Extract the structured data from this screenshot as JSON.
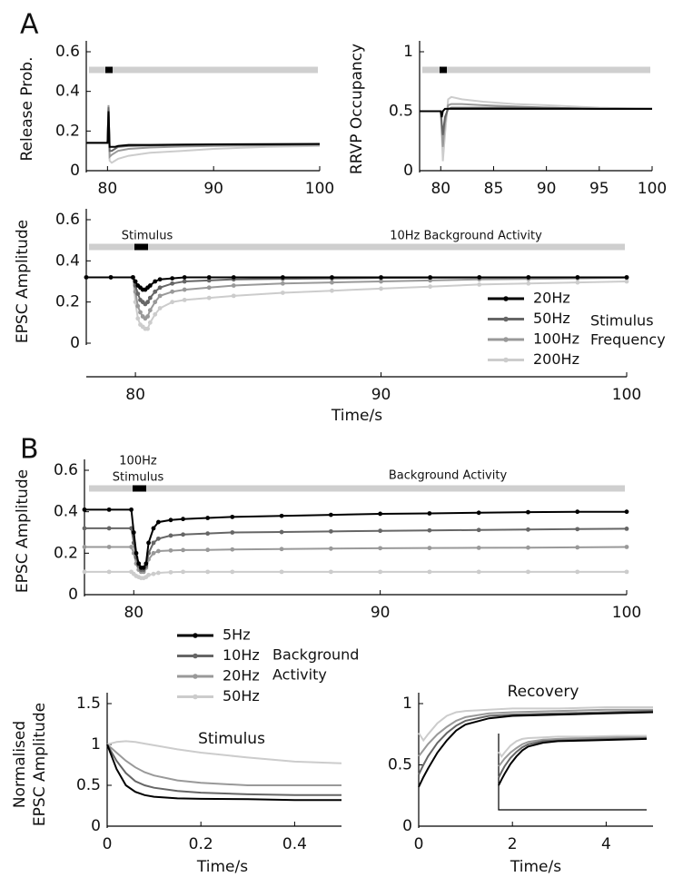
{
  "chart_data": [
    {
      "type": "line",
      "panel_label": "A",
      "ylabel": "Release Prob.",
      "x": [
        78,
        79,
        80,
        80.1,
        80.2,
        80.4,
        80.7,
        81,
        82,
        84,
        87,
        90,
        95,
        100
      ],
      "series": [
        {
          "color": "#000000",
          "values": [
            0.14,
            0.14,
            0.14,
            0.3,
            0.12,
            0.12,
            0.12,
            0.125,
            0.13,
            0.13,
            0.132,
            0.133,
            0.134,
            0.135
          ]
        },
        {
          "color": "#666666",
          "values": [
            0.14,
            0.14,
            0.14,
            0.32,
            0.1,
            0.1,
            0.11,
            0.12,
            0.125,
            0.127,
            0.13,
            0.131,
            0.132,
            0.133
          ]
        },
        {
          "color": "#999999",
          "values": [
            0.14,
            0.14,
            0.14,
            0.33,
            0.07,
            0.08,
            0.09,
            0.1,
            0.11,
            0.117,
            0.122,
            0.125,
            0.128,
            0.13
          ]
        },
        {
          "color": "#cccccc",
          "values": [
            0.14,
            0.14,
            0.14,
            0.33,
            0.05,
            0.04,
            0.05,
            0.06,
            0.075,
            0.09,
            0.1,
            0.11,
            0.12,
            0.125
          ]
        }
      ],
      "xlim": [
        78,
        100
      ],
      "xticks": [
        80,
        90,
        100
      ],
      "ylim": [
        0,
        0.6
      ],
      "yticks": [
        0,
        0.2,
        0.4,
        0.6
      ]
    },
    {
      "type": "line",
      "ylabel": "RRVP Occupancy",
      "x": [
        78,
        79,
        80,
        80.1,
        80.2,
        80.4,
        80.7,
        81,
        82,
        84,
        87,
        90,
        95,
        100
      ],
      "series": [
        {
          "color": "#000000",
          "values": [
            0.5,
            0.5,
            0.5,
            0.45,
            0.5,
            0.52,
            0.52,
            0.52,
            0.52,
            0.52,
            0.52,
            0.52,
            0.52,
            0.52
          ]
        },
        {
          "color": "#666666",
          "values": [
            0.5,
            0.5,
            0.5,
            0.4,
            0.3,
            0.45,
            0.52,
            0.53,
            0.53,
            0.53,
            0.53,
            0.53,
            0.52,
            0.52
          ]
        },
        {
          "color": "#999999",
          "values": [
            0.5,
            0.5,
            0.5,
            0.35,
            0.2,
            0.4,
            0.55,
            0.56,
            0.56,
            0.55,
            0.54,
            0.53,
            0.52,
            0.52
          ]
        },
        {
          "color": "#cccccc",
          "values": [
            0.5,
            0.5,
            0.5,
            0.3,
            0.08,
            0.3,
            0.6,
            0.62,
            0.6,
            0.58,
            0.56,
            0.55,
            0.53,
            0.52
          ]
        }
      ],
      "xlim": [
        78,
        100
      ],
      "xticks": [
        80,
        85,
        90,
        95,
        100
      ],
      "ylim": [
        0,
        1
      ],
      "yticks": [
        0,
        0.5,
        1
      ]
    },
    {
      "type": "line",
      "markers": true,
      "ylabel": "EPSC Amplitude",
      "xlabel": "Time/s",
      "annotations": [
        {
          "text": "Stimulus"
        },
        {
          "text": "10Hz Background Activity"
        }
      ],
      "legend_title": [
        "Stimulus",
        "Frequency"
      ],
      "x": [
        78,
        79,
        79.9,
        80,
        80.1,
        80.2,
        80.3,
        80.4,
        80.5,
        80.6,
        80.8,
        81,
        81.5,
        82,
        83,
        84,
        86,
        88,
        90,
        92,
        94,
        96,
        98,
        100
      ],
      "series": [
        {
          "name": "20Hz",
          "color": "#000000",
          "values": [
            0.32,
            0.32,
            0.32,
            0.3,
            0.28,
            0.27,
            0.26,
            0.26,
            0.27,
            0.28,
            0.3,
            0.31,
            0.315,
            0.32,
            0.32,
            0.32,
            0.32,
            0.32,
            0.32,
            0.32,
            0.32,
            0.32,
            0.32,
            0.32
          ]
        },
        {
          "name": "50Hz",
          "color": "#666666",
          "values": [
            0.32,
            0.32,
            0.32,
            0.28,
            0.24,
            0.21,
            0.2,
            0.19,
            0.2,
            0.22,
            0.25,
            0.27,
            0.29,
            0.3,
            0.305,
            0.31,
            0.313,
            0.315,
            0.317,
            0.318,
            0.319,
            0.32,
            0.32,
            0.32
          ]
        },
        {
          "name": "100Hz",
          "color": "#999999",
          "values": [
            0.32,
            0.32,
            0.32,
            0.25,
            0.18,
            0.15,
            0.13,
            0.12,
            0.13,
            0.16,
            0.2,
            0.23,
            0.25,
            0.26,
            0.27,
            0.28,
            0.29,
            0.295,
            0.3,
            0.305,
            0.31,
            0.312,
            0.315,
            0.318
          ]
        },
        {
          "name": "200Hz",
          "color": "#cccccc",
          "values": [
            0.32,
            0.32,
            0.32,
            0.2,
            0.12,
            0.09,
            0.08,
            0.07,
            0.07,
            0.1,
            0.14,
            0.17,
            0.2,
            0.21,
            0.22,
            0.23,
            0.245,
            0.255,
            0.265,
            0.275,
            0.285,
            0.29,
            0.295,
            0.3
          ]
        }
      ],
      "xlim": [
        78,
        100
      ],
      "xticks": [
        80,
        90,
        100
      ],
      "ylim": [
        0,
        0.6
      ],
      "yticks": [
        0,
        0.2,
        0.4,
        0.6
      ]
    },
    {
      "type": "line",
      "markers": true,
      "panel_label": "B",
      "ylabel": "EPSC Amplitude",
      "annotations": [
        {
          "text": "100Hz"
        },
        {
          "text": "Stimulus"
        },
        {
          "text": "Background Activity"
        }
      ],
      "legend_title": [
        "Background",
        "Activity"
      ],
      "x": [
        78,
        79,
        79.9,
        80,
        80.1,
        80.2,
        80.3,
        80.4,
        80.5,
        80.6,
        80.8,
        81,
        81.5,
        82,
        83,
        84,
        86,
        88,
        90,
        92,
        94,
        96,
        98,
        100
      ],
      "series": [
        {
          "name": "5Hz",
          "color": "#000000",
          "values": [
            0.41,
            0.41,
            0.41,
            0.3,
            0.2,
            0.15,
            0.13,
            0.13,
            0.15,
            0.25,
            0.32,
            0.35,
            0.36,
            0.365,
            0.37,
            0.375,
            0.38,
            0.385,
            0.39,
            0.392,
            0.395,
            0.398,
            0.4,
            0.4
          ]
        },
        {
          "name": "10Hz",
          "color": "#666666",
          "values": [
            0.32,
            0.32,
            0.32,
            0.25,
            0.18,
            0.14,
            0.12,
            0.12,
            0.14,
            0.2,
            0.25,
            0.27,
            0.285,
            0.29,
            0.295,
            0.3,
            0.302,
            0.305,
            0.308,
            0.31,
            0.312,
            0.314,
            0.316,
            0.318
          ]
        },
        {
          "name": "20Hz",
          "color": "#999999",
          "values": [
            0.23,
            0.23,
            0.23,
            0.2,
            0.15,
            0.12,
            0.11,
            0.11,
            0.13,
            0.17,
            0.2,
            0.21,
            0.213,
            0.215,
            0.216,
            0.218,
            0.22,
            0.222,
            0.224,
            0.225,
            0.226,
            0.227,
            0.228,
            0.23
          ]
        },
        {
          "name": "50Hz",
          "color": "#cccccc",
          "values": [
            0.11,
            0.11,
            0.11,
            0.1,
            0.09,
            0.085,
            0.08,
            0.08,
            0.085,
            0.095,
            0.1,
            0.105,
            0.108,
            0.11,
            0.11,
            0.11,
            0.11,
            0.11,
            0.11,
            0.11,
            0.11,
            0.11,
            0.11,
            0.11
          ]
        }
      ],
      "xlim": [
        78,
        100
      ],
      "xticks": [
        80,
        90,
        100
      ],
      "ylim": [
        0,
        0.6
      ],
      "yticks": [
        0,
        0.2,
        0.4,
        0.6
      ]
    },
    {
      "type": "line",
      "title": "Stimulus",
      "ylabel": [
        "Normalised",
        "EPSC Amplitude"
      ],
      "xlabel": "Time/s",
      "x": [
        0,
        0.02,
        0.04,
        0.06,
        0.08,
        0.1,
        0.15,
        0.2,
        0.3,
        0.4,
        0.5
      ],
      "series": [
        {
          "color": "#000000",
          "values": [
            1,
            0.7,
            0.5,
            0.42,
            0.38,
            0.36,
            0.34,
            0.335,
            0.33,
            0.32,
            0.32
          ]
        },
        {
          "color": "#666666",
          "values": [
            1,
            0.8,
            0.65,
            0.55,
            0.5,
            0.47,
            0.43,
            0.41,
            0.39,
            0.38,
            0.38
          ]
        },
        {
          "color": "#999999",
          "values": [
            1,
            0.9,
            0.8,
            0.72,
            0.66,
            0.62,
            0.56,
            0.53,
            0.5,
            0.5,
            0.5
          ]
        },
        {
          "color": "#cccccc",
          "values": [
            1,
            1.03,
            1.04,
            1.03,
            1.01,
            0.99,
            0.94,
            0.9,
            0.84,
            0.79,
            0.77
          ]
        }
      ],
      "xlim": [
        0,
        0.5
      ],
      "xticks": [
        0,
        0.2,
        0.4
      ],
      "ylim": [
        0,
        1.5
      ],
      "yticks": [
        0,
        0.5,
        1,
        1.5
      ]
    },
    {
      "type": "line",
      "title": "Recovery",
      "xlabel": "Time/s",
      "x": [
        0,
        0.1,
        0.2,
        0.4,
        0.6,
        0.8,
        1,
        1.5,
        2,
        3,
        4,
        5
      ],
      "series": [
        {
          "color": "#000000",
          "values": [
            0.32,
            0.4,
            0.47,
            0.6,
            0.7,
            0.78,
            0.83,
            0.88,
            0.9,
            0.91,
            0.92,
            0.93
          ]
        },
        {
          "color": "#666666",
          "values": [
            0.42,
            0.5,
            0.57,
            0.68,
            0.76,
            0.82,
            0.86,
            0.9,
            0.91,
            0.92,
            0.93,
            0.94
          ]
        },
        {
          "color": "#999999",
          "values": [
            0.57,
            0.62,
            0.67,
            0.75,
            0.81,
            0.86,
            0.89,
            0.92,
            0.93,
            0.94,
            0.95,
            0.95
          ]
        },
        {
          "color": "#cccccc",
          "values": [
            0.76,
            0.7,
            0.75,
            0.84,
            0.9,
            0.93,
            0.94,
            0.95,
            0.96,
            0.96,
            0.97,
            0.97
          ]
        }
      ],
      "xlim": [
        0,
        5
      ],
      "xticks": [
        0,
        2,
        4
      ],
      "ylim": [
        0,
        1
      ],
      "yticks": [
        0,
        0.5,
        1
      ]
    }
  ]
}
